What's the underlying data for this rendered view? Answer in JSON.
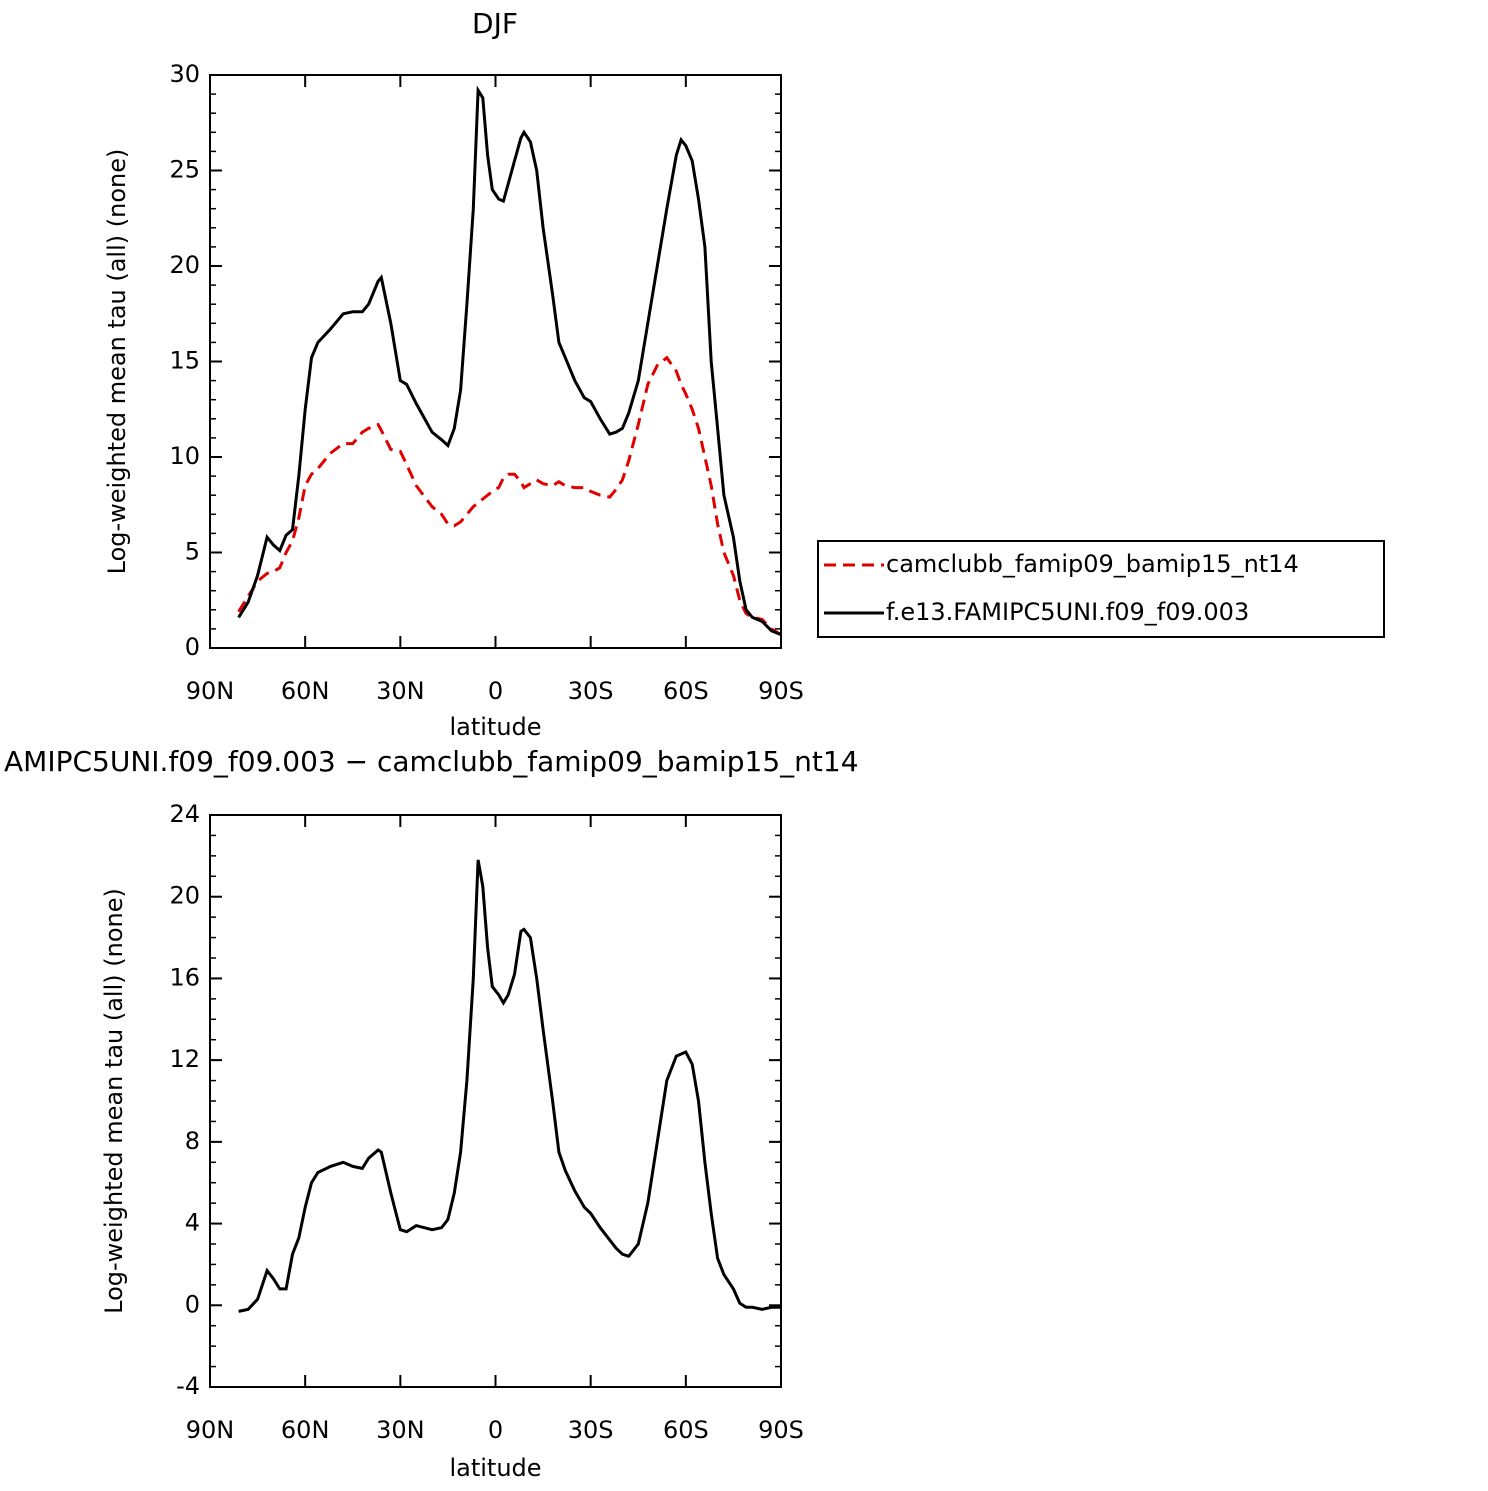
{
  "chart_data": [
    {
      "type": "line",
      "title": "DJF",
      "xlabel": "latitude",
      "ylabel": "Log-weighted mean tau (all) (none)",
      "x": [
        81,
        78,
        75,
        72,
        70,
        68,
        66,
        64,
        62,
        60,
        58,
        56,
        52,
        48,
        45,
        42,
        40,
        37,
        36,
        33,
        30,
        28,
        25,
        20,
        17,
        15,
        13,
        11,
        9,
        7,
        5.5,
        4,
        2.5,
        1,
        -1,
        -2.5,
        -4,
        -6,
        -8,
        -9,
        -11,
        -13,
        -15,
        -18,
        -20,
        -22,
        -25,
        -28,
        -30,
        -33,
        -36,
        -38,
        -40,
        -42,
        -45,
        -48,
        -51,
        -54,
        -57,
        -58.5,
        -60,
        -62,
        -64,
        -66,
        -68,
        -70,
        -72,
        -75,
        -77,
        -79,
        -81,
        -84,
        -87,
        -90
      ],
      "series": [
        {
          "name": "camclubb_famip09_bamip15_nt14",
          "color": "#e00000",
          "dashed": true,
          "values": [
            1.9,
            2.7,
            3.5,
            3.9,
            4.0,
            4.2,
            5.0,
            5.6,
            6.8,
            8.5,
            9.1,
            9.4,
            10.2,
            10.7,
            10.7,
            11.3,
            11.5,
            11.7,
            11.4,
            10.4,
            10.3,
            9.6,
            8.5,
            7.4,
            7.0,
            6.5,
            6.4,
            6.6,
            7.0,
            7.4,
            7.6,
            7.8,
            8.0,
            8.2,
            8.4,
            8.9,
            9.1,
            9.1,
            8.7,
            8.4,
            8.6,
            8.8,
            8.6,
            8.5,
            8.7,
            8.5,
            8.4,
            8.4,
            8.2,
            8.0,
            7.9,
            8.3,
            8.8,
            9.8,
            11.7,
            13.8,
            14.8,
            15.2,
            14.5,
            13.8,
            13.3,
            12.5,
            11.5,
            10.0,
            8.5,
            6.5,
            5.0,
            3.8,
            2.5,
            1.8,
            1.6,
            1.5,
            1.0,
            0.7
          ]
        },
        {
          "name": "f.e13.FAMIPC5UNI.f09_f09.003",
          "color": "#000000",
          "dashed": false,
          "values": [
            1.6,
            2.4,
            3.8,
            5.8,
            5.4,
            5.1,
            5.9,
            6.2,
            9.0,
            12.5,
            15.2,
            16.0,
            16.7,
            17.5,
            17.6,
            17.6,
            18.0,
            19.2,
            19.4,
            17.0,
            14.0,
            13.8,
            12.8,
            11.3,
            10.9,
            10.6,
            11.5,
            13.5,
            18.0,
            23.0,
            29.2,
            28.8,
            25.8,
            24.0,
            23.5,
            23.4,
            24.3,
            25.5,
            26.7,
            27.0,
            26.5,
            25.0,
            22.0,
            18.5,
            16.0,
            15.2,
            14.0,
            13.1,
            12.9,
            12.0,
            11.2,
            11.3,
            11.5,
            12.3,
            14.0,
            17.0,
            20.0,
            23.0,
            25.8,
            26.6,
            26.3,
            25.5,
            23.5,
            21.0,
            15.0,
            11.5,
            8.0,
            5.8,
            3.5,
            2.0,
            1.6,
            1.4,
            0.9,
            0.7
          ]
        }
      ],
      "xlim": [
        90,
        -90
      ],
      "xticks": [
        {
          "value": 90,
          "label": "90N"
        },
        {
          "value": 60,
          "label": "60N"
        },
        {
          "value": 30,
          "label": "30N"
        },
        0,
        {
          "value": -30,
          "label": "30S"
        },
        {
          "value": -60,
          "label": "60S"
        },
        {
          "value": -90,
          "label": "90S"
        }
      ],
      "ylim": [
        0,
        30
      ],
      "yticks": [
        0,
        5,
        10,
        15,
        20,
        25,
        30
      ],
      "legend": "right"
    },
    {
      "type": "line",
      "title": "AMIPC5UNI.f09_f09.003 − camclubb_famip09_bamip15_nt14",
      "xlabel": "latitude",
      "ylabel": "Log-weighted mean tau (all) (none)",
      "x": [
        81,
        78,
        75,
        72,
        70,
        68,
        66,
        64,
        62,
        60,
        58,
        56,
        52,
        48,
        45,
        42,
        40,
        37,
        36,
        33,
        30,
        28,
        25,
        20,
        17,
        15,
        13,
        11,
        9,
        7,
        5.5,
        4,
        2.5,
        1,
        -1,
        -2.5,
        -4,
        -6,
        -8,
        -9,
        -11,
        -13,
        -15,
        -18,
        -20,
        -22,
        -25,
        -28,
        -30,
        -33,
        -36,
        -38,
        -40,
        -42,
        -45,
        -48,
        -51,
        -54,
        -57,
        -58.5,
        -60,
        -62,
        -64,
        -66,
        -68,
        -70,
        -72,
        -75,
        -77,
        -79,
        -81,
        -84,
        -87,
        -90
      ],
      "series": [
        {
          "color": "#000000",
          "dashed": false,
          "values": [
            -0.3,
            -0.2,
            0.3,
            1.7,
            1.3,
            0.8,
            0.8,
            2.5,
            3.3,
            4.8,
            6.0,
            6.5,
            6.8,
            7.0,
            6.8,
            6.7,
            7.2,
            7.6,
            7.5,
            5.5,
            3.7,
            3.6,
            3.9,
            3.7,
            3.8,
            4.2,
            5.5,
            7.5,
            11,
            16,
            21.8,
            20.5,
            17.5,
            15.6,
            15.2,
            14.8,
            15.2,
            16.2,
            18.3,
            18.4,
            18.0,
            16,
            13.5,
            10,
            7.5,
            6.6,
            5.6,
            4.8,
            4.5,
            3.8,
            3.2,
            2.8,
            2.5,
            2.4,
            3.0,
            5.0,
            8.0,
            11,
            12.2,
            12.3,
            12.4,
            11.8,
            10.0,
            7.0,
            4.5,
            2.3,
            1.5,
            0.8,
            0.1,
            -0.1,
            -0.1,
            -0.2,
            -0.1,
            -0.1
          ]
        }
      ],
      "xlim": [
        90,
        -90
      ],
      "xticks": [
        {
          "value": 90,
          "label": "90N"
        },
        {
          "value": 60,
          "label": "60N"
        },
        {
          "value": 30,
          "label": "30N"
        },
        0,
        {
          "value": -30,
          "label": "30S"
        },
        {
          "value": -60,
          "label": "60S"
        },
        {
          "value": -90,
          "label": "90S"
        }
      ],
      "ylim": [
        -4,
        24
      ],
      "yticks": [
        -4,
        0,
        4,
        8,
        12,
        16,
        20,
        24
      ]
    }
  ]
}
